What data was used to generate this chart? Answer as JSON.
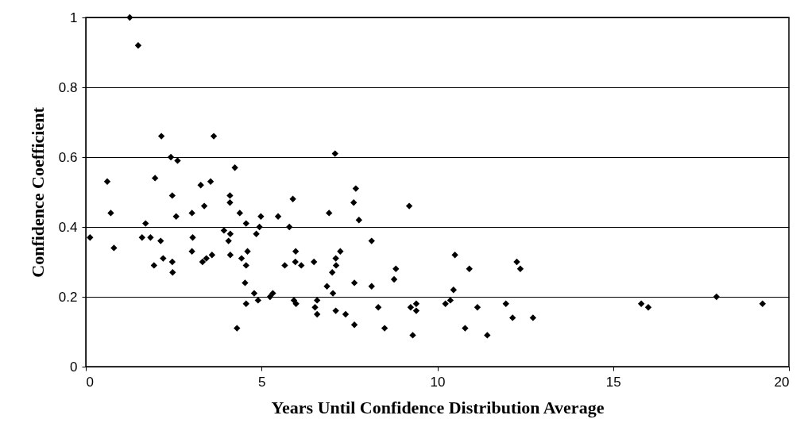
{
  "chart_data": {
    "type": "scatter",
    "xlabel": "Years Until Confidence Distribution Average",
    "ylabel": "Confidence Coefficient",
    "xlim": [
      0,
      20
    ],
    "xticks": [
      0,
      5,
      10,
      15,
      20
    ],
    "ylim": [
      0,
      1
    ],
    "yticks": [
      0,
      0.2,
      0.4,
      0.6,
      0.8,
      1
    ],
    "grid": "y",
    "marker": "diamond",
    "series": [
      {
        "color": "#000000",
        "x": [
          1.25,
          1.49,
          0.12,
          0.61,
          0.71,
          0.8,
          1.7,
          1.6,
          1.84,
          2.13,
          1.94,
          2.15,
          1.97,
          2.2,
          2.46,
          2.47,
          2.42,
          2.61,
          2.46,
          2.57,
          3.02,
          3.04,
          3.02,
          3.27,
          3.37,
          3.55,
          3.64,
          3.32,
          3.43,
          3.59,
          3.93,
          4.11,
          4.06,
          4.1,
          4.1,
          4.24,
          4.11,
          4.38,
          4.56,
          4.85,
          4.98,
          4.43,
          4.6,
          4.56,
          4.53,
          4.79,
          4.9,
          4.56,
          4.3,
          7.09,
          4.94,
          5.47,
          5.89,
          5.79,
          6.92,
          7.68,
          7.62,
          7.77,
          9.2,
          8.13,
          7.24,
          5.97,
          5.66,
          5.96,
          6.13,
          6.49,
          7.11,
          7.12,
          7.01,
          7.64,
          8.13,
          8.82,
          8.77,
          6.86,
          7.03,
          5.24,
          5.32,
          5.92,
          5.98,
          6.58,
          6.52,
          6.58,
          7.11,
          7.39,
          7.64,
          8.32,
          8.5,
          9.3,
          9.24,
          9.4,
          9.4,
          10.5,
          10.91,
          12.26,
          12.36,
          10.46,
          10.37,
          10.23,
          11.14,
          11.95,
          12.14,
          12.72,
          10.79,
          11.42,
          15.8,
          16.0,
          17.94,
          19.25
        ],
        "values": [
          1.0,
          0.92,
          0.37,
          0.53,
          0.44,
          0.34,
          0.41,
          0.37,
          0.37,
          0.36,
          0.29,
          0.66,
          0.54,
          0.31,
          0.3,
          0.27,
          0.6,
          0.59,
          0.49,
          0.43,
          0.44,
          0.37,
          0.33,
          0.52,
          0.46,
          0.53,
          0.66,
          0.3,
          0.31,
          0.32,
          0.39,
          0.38,
          0.36,
          0.49,
          0.47,
          0.57,
          0.32,
          0.44,
          0.41,
          0.38,
          0.43,
          0.31,
          0.33,
          0.29,
          0.24,
          0.21,
          0.19,
          0.18,
          0.11,
          0.61,
          0.4,
          0.43,
          0.48,
          0.4,
          0.44,
          0.51,
          0.47,
          0.42,
          0.46,
          0.36,
          0.33,
          0.33,
          0.29,
          0.3,
          0.29,
          0.3,
          0.31,
          0.29,
          0.27,
          0.24,
          0.23,
          0.28,
          0.25,
          0.23,
          0.21,
          0.2,
          0.21,
          0.19,
          0.18,
          0.19,
          0.17,
          0.15,
          0.16,
          0.15,
          0.12,
          0.17,
          0.11,
          0.09,
          0.17,
          0.18,
          0.16,
          0.32,
          0.28,
          0.3,
          0.28,
          0.22,
          0.19,
          0.18,
          0.17,
          0.18,
          0.14,
          0.14,
          0.11,
          0.09,
          0.18,
          0.17,
          0.2,
          0.18
        ]
      }
    ]
  }
}
